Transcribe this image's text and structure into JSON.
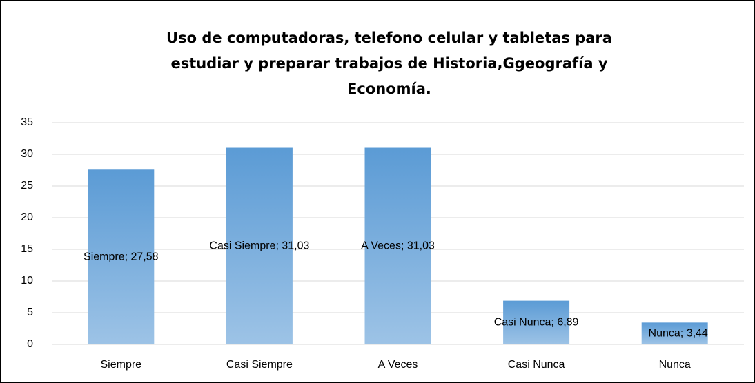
{
  "chart_data": {
    "type": "bar",
    "title": [
      "Uso de computadoras, telefono celular y tabletas para",
      "estudiar y preparar trabajos de Historia,Ggeografía y",
      "Economía."
    ],
    "categories": [
      "Siempre",
      "Casi Siempre",
      "A Veces",
      "Casi Nunca",
      "Nunca"
    ],
    "values": [
      27.58,
      31.03,
      31.03,
      6.89,
      3.44
    ],
    "value_labels": [
      "Siempre; 27,58",
      "Casi Siempre; 31,03",
      "A Veces; 31,03",
      "Casi Nunca; 6,89",
      "Nunca; 3,44"
    ],
    "color": "#5b9bd5",
    "ylim": [
      0,
      35
    ],
    "yticks": [
      0,
      5,
      10,
      15,
      20,
      25,
      30,
      35
    ],
    "grid": true
  }
}
